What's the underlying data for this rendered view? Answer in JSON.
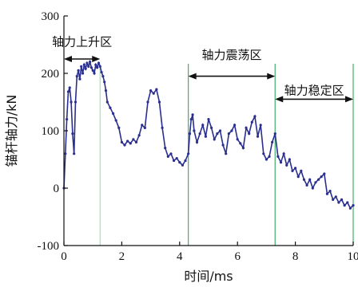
{
  "chart_data": {
    "type": "line",
    "xlabel": "时间/ms",
    "ylabel": "锚杆轴力/kN",
    "xlim": [
      0,
      10
    ],
    "ylim": [
      -100,
      300
    ],
    "x_ticks": [
      0,
      2,
      4,
      6,
      8,
      10
    ],
    "y_ticks": [
      -100,
      0,
      100,
      200,
      300
    ],
    "grid": false,
    "series": [
      {
        "color": "#2a2f8f",
        "x": [
          0,
          0.05,
          0.1,
          0.15,
          0.2,
          0.25,
          0.3,
          0.35,
          0.4,
          0.45,
          0.5,
          0.55,
          0.6,
          0.65,
          0.7,
          0.75,
          0.8,
          0.85,
          0.9,
          0.95,
          1.0,
          1.05,
          1.1,
          1.15,
          1.2,
          1.25,
          1.3,
          1.35,
          1.4,
          1.45,
          1.5,
          1.6,
          1.7,
          1.8,
          1.9,
          2.0,
          2.1,
          2.2,
          2.3,
          2.4,
          2.5,
          2.6,
          2.7,
          2.8,
          2.9,
          3.0,
          3.1,
          3.2,
          3.3,
          3.4,
          3.5,
          3.6,
          3.7,
          3.8,
          3.9,
          4.0,
          4.1,
          4.2,
          4.3,
          4.35,
          4.4,
          4.45,
          4.5,
          4.6,
          4.7,
          4.8,
          4.9,
          5.0,
          5.1,
          5.2,
          5.3,
          5.4,
          5.5,
          5.6,
          5.7,
          5.8,
          5.9,
          6.0,
          6.1,
          6.2,
          6.3,
          6.4,
          6.5,
          6.6,
          6.7,
          6.8,
          6.9,
          7.0,
          7.1,
          7.2,
          7.3,
          7.4,
          7.5,
          7.6,
          7.7,
          7.8,
          7.9,
          8.0,
          8.1,
          8.2,
          8.3,
          8.4,
          8.5,
          8.6,
          8.7,
          8.8,
          8.9,
          9.0,
          9.1,
          9.2,
          9.3,
          9.4,
          9.5,
          9.6,
          9.7,
          9.8,
          9.9,
          10.0
        ],
        "y": [
          0,
          60,
          120,
          168,
          175,
          150,
          95,
          60,
          150,
          195,
          205,
          190,
          212,
          200,
          215,
          208,
          218,
          212,
          220,
          210,
          205,
          200,
          215,
          210,
          218,
          212,
          202,
          195,
          185,
          170,
          150,
          140,
          130,
          118,
          105,
          80,
          75,
          82,
          78,
          85,
          80,
          92,
          110,
          105,
          150,
          170,
          165,
          172,
          150,
          105,
          70,
          55,
          60,
          48,
          52,
          45,
          40,
          48,
          60,
          95,
          120,
          128,
          100,
          80,
          95,
          110,
          90,
          120,
          105,
          85,
          95,
          100,
          75,
          60,
          95,
          100,
          110,
          85,
          78,
          70,
          105,
          95,
          115,
          125,
          90,
          110,
          60,
          50,
          55,
          80,
          95,
          55,
          45,
          60,
          40,
          50,
          30,
          35,
          20,
          30,
          15,
          5,
          15,
          0,
          10,
          15,
          20,
          25,
          -10,
          -5,
          -20,
          -15,
          -25,
          -20,
          -30,
          -25,
          -35,
          -30
        ]
      }
    ],
    "vlines": [
      {
        "x": 1.25,
        "color": "#9fe3b1"
      },
      {
        "x": 4.3,
        "color": "#3fae6a"
      },
      {
        "x": 7.3,
        "color": "#3fae6a"
      },
      {
        "x": 10.0,
        "color": "#3fae6a"
      }
    ],
    "zones": [
      {
        "label": "轴力上升区",
        "x_start": 0,
        "x_end": 1.25,
        "arrow_y": 225,
        "label_y": 255
      },
      {
        "label": "轴力震荡区",
        "x_start": 4.3,
        "x_end": 7.3,
        "arrow_y": 195,
        "label_y": 232
      },
      {
        "label": "轴力稳定区",
        "x_start": 7.3,
        "x_end": 10.0,
        "arrow_y": 155,
        "label_y": 170
      }
    ]
  }
}
